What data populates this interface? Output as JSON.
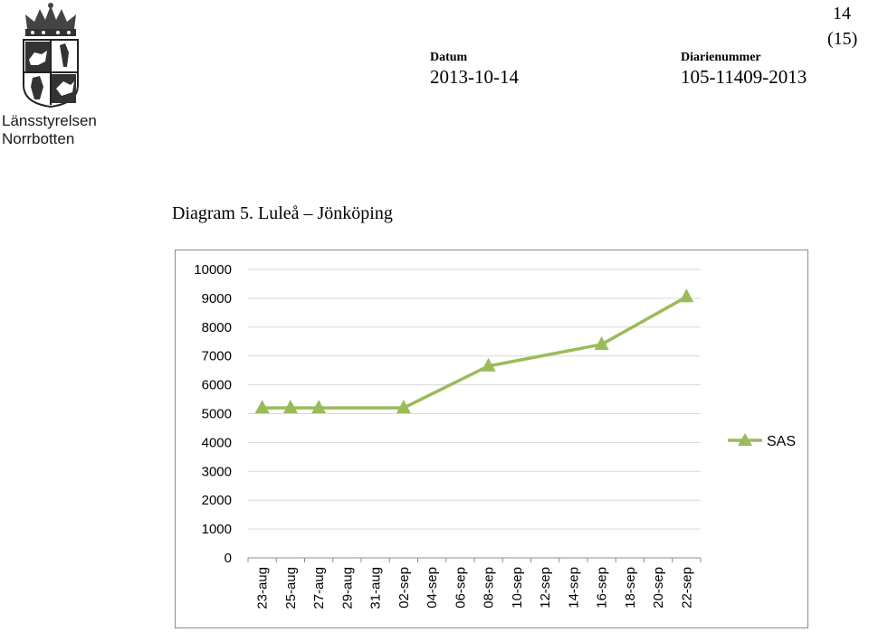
{
  "header": {
    "org_line1": "Länsstyrelsen",
    "org_line2": "Norrbotten",
    "date_label": "Datum",
    "date_value": "2013-10-14",
    "ref_label": "Diarienummer",
    "ref_value": "105-11409-2013",
    "page_number": "14",
    "page_total": "(15)"
  },
  "caption": "Diagram 5. Luleå – Jönköping",
  "chart_data": {
    "type": "line",
    "title": "",
    "xlabel": "",
    "ylabel": "",
    "ylim": [
      0,
      10000
    ],
    "yticks": [
      "0",
      "1000",
      "2000",
      "3000",
      "4000",
      "5000",
      "6000",
      "7000",
      "8000",
      "9000",
      "10000"
    ],
    "categories": [
      "23-aug",
      "25-aug",
      "27-aug",
      "29-aug",
      "31-aug",
      "02-sep",
      "04-sep",
      "06-sep",
      "08-sep",
      "10-sep",
      "12-sep",
      "14-sep",
      "16-sep",
      "18-sep",
      "20-sep",
      "22-sep"
    ],
    "grid": true,
    "legend_position": "right",
    "series": [
      {
        "name": "SAS",
        "color": "#9bbb59",
        "marker": "triangle",
        "points": [
          {
            "x": "23-aug",
            "y": 5200
          },
          {
            "x": "25-aug",
            "y": 5200
          },
          {
            "x": "27-aug",
            "y": 5200
          },
          {
            "x": "02-sep",
            "y": 5200
          },
          {
            "x": "08-sep",
            "y": 6650
          },
          {
            "x": "16-sep",
            "y": 7400
          },
          {
            "x": "22-sep",
            "y": 9050
          }
        ]
      }
    ]
  }
}
